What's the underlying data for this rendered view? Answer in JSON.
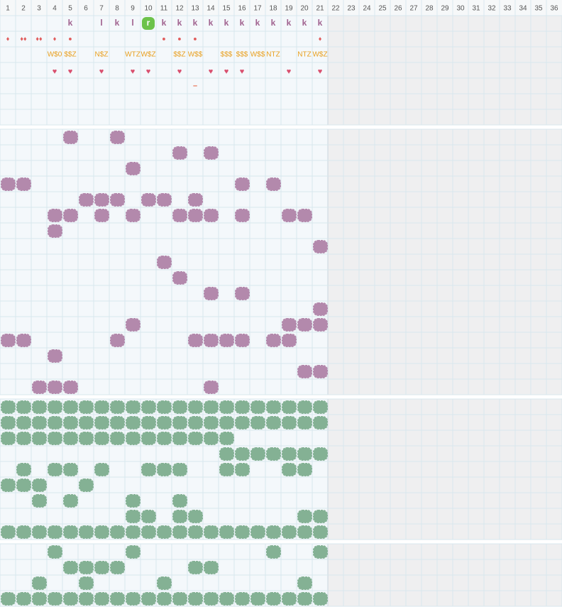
{
  "columns": [
    1,
    2,
    3,
    4,
    5,
    6,
    7,
    8,
    9,
    10,
    11,
    12,
    13,
    14,
    15,
    16,
    17,
    18,
    19,
    20,
    21,
    22,
    23,
    24,
    25,
    26,
    27,
    28,
    29,
    30,
    31,
    32,
    33,
    34,
    35,
    36
  ],
  "sections": [
    {
      "kind": "symbols",
      "rows": [
        [
          {
            "col": 5,
            "text": "k"
          },
          {
            "col": 7,
            "text": "l"
          },
          {
            "col": 8,
            "text": "k"
          },
          {
            "col": 9,
            "text": "l"
          },
          {
            "col": 10,
            "text": "r",
            "badge": true
          },
          {
            "col": 11,
            "text": "k"
          },
          {
            "col": 12,
            "text": "k"
          },
          {
            "col": 13,
            "text": "k"
          },
          {
            "col": 14,
            "text": "k"
          },
          {
            "col": 15,
            "text": "k"
          },
          {
            "col": 16,
            "text": "k"
          },
          {
            "col": 17,
            "text": "k"
          },
          {
            "col": 18,
            "text": "k"
          },
          {
            "col": 19,
            "text": "k"
          },
          {
            "col": 20,
            "text": "k"
          },
          {
            "col": 21,
            "text": "k"
          }
        ],
        [
          {
            "col": 1,
            "text": "♦"
          },
          {
            "col": 2,
            "text": "♦♦"
          },
          {
            "col": 3,
            "text": "♦♦"
          },
          {
            "col": 4,
            "text": "♦"
          },
          {
            "col": 5,
            "text": "●"
          },
          {
            "col": 11,
            "text": "●"
          },
          {
            "col": 12,
            "text": "●"
          },
          {
            "col": 13,
            "text": "●"
          },
          {
            "col": 21,
            "text": "♦"
          }
        ],
        [
          {
            "col": 4,
            "text": "W$0"
          },
          {
            "col": 5,
            "text": "$$Z"
          },
          {
            "col": 7,
            "text": "N$Z"
          },
          {
            "col": 9,
            "text": "WTZ"
          },
          {
            "col": 10,
            "text": "W$Z"
          },
          {
            "col": 12,
            "text": "$$Z"
          },
          {
            "col": 13,
            "text": "W$$"
          },
          {
            "col": 15,
            "text": "$$$"
          },
          {
            "col": 16,
            "text": "$$$"
          },
          {
            "col": 17,
            "text": "W$$"
          },
          {
            "col": 18,
            "text": "NTZ"
          },
          {
            "col": 20,
            "text": "NTZ"
          },
          {
            "col": 21,
            "text": "W$Z"
          }
        ],
        [
          {
            "col": 4,
            "text": "♥"
          },
          {
            "col": 5,
            "text": "♥"
          },
          {
            "col": 7,
            "text": "♥"
          },
          {
            "col": 9,
            "text": "♥"
          },
          {
            "col": 10,
            "text": "♥"
          },
          {
            "col": 12,
            "text": "♥"
          },
          {
            "col": 14,
            "text": "♥"
          },
          {
            "col": 15,
            "text": "♥"
          },
          {
            "col": 16,
            "text": "♥"
          },
          {
            "col": 19,
            "text": "♥"
          },
          {
            "col": 21,
            "text": "♥"
          }
        ],
        [
          {
            "col": 13,
            "text": "–"
          }
        ],
        [],
        []
      ]
    },
    {
      "kind": "blobs",
      "color": "#b084a8",
      "rows": [
        [
          5,
          8
        ],
        [
          12,
          14
        ],
        [
          9
        ],
        [
          1,
          2,
          16,
          18
        ],
        [
          6,
          7,
          8,
          10,
          11,
          13
        ],
        [
          4,
          5,
          7,
          9,
          12,
          13,
          14,
          16,
          19,
          20
        ],
        [
          4
        ],
        [
          21
        ],
        [
          11
        ],
        [
          12
        ],
        [
          14,
          16
        ],
        [
          21
        ],
        [
          9,
          19,
          20,
          21
        ],
        [
          1,
          2,
          8,
          13,
          14,
          15,
          16,
          18,
          19
        ],
        [
          4
        ],
        [
          20,
          21
        ],
        [
          3,
          4,
          5,
          14
        ]
      ]
    },
    {
      "kind": "blobs",
      "color": "#7fae8f",
      "rows": [
        [
          1,
          2,
          3,
          4,
          5,
          6,
          7,
          8,
          9,
          10,
          11,
          12,
          13,
          14,
          15,
          16,
          17,
          18,
          19,
          20,
          21
        ],
        [
          1,
          2,
          3,
          4,
          5,
          6,
          7,
          8,
          9,
          10,
          11,
          12,
          13,
          14,
          15,
          16,
          17,
          18,
          19,
          20,
          21
        ],
        [
          1,
          2,
          3,
          4,
          5,
          6,
          7,
          8,
          9,
          10,
          11,
          12,
          13,
          14,
          15
        ],
        [
          15,
          16,
          17,
          18,
          19,
          20,
          21
        ],
        [
          2,
          4,
          5,
          7,
          10,
          11,
          12,
          15,
          16,
          19,
          20
        ],
        [
          1,
          2,
          3,
          6
        ],
        [
          3,
          5,
          9,
          12
        ],
        [
          9,
          10,
          12,
          13,
          20,
          21
        ],
        [
          1,
          2,
          3,
          4,
          5,
          6,
          7,
          8,
          9,
          10,
          11,
          12,
          13,
          14,
          15,
          16,
          17,
          18,
          19,
          20,
          21
        ]
      ]
    },
    {
      "kind": "blobs",
      "color": "#7fae8f",
      "rows": [
        [
          4,
          9,
          18,
          21
        ],
        [
          5,
          6,
          7,
          8,
          13,
          14
        ],
        [
          3,
          6,
          11,
          20
        ],
        [
          1,
          2,
          3,
          4,
          5,
          6,
          7,
          8,
          9,
          10,
          11,
          12,
          13,
          14,
          15,
          16,
          17,
          18,
          19,
          20,
          21
        ]
      ]
    }
  ]
}
